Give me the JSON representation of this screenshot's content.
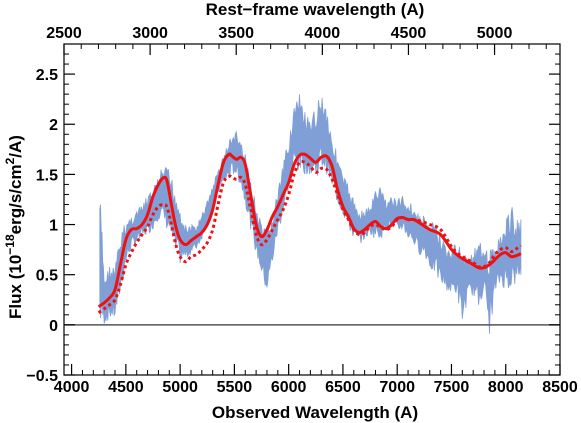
{
  "chart_data": {
    "type": "line",
    "title": "",
    "xlabel": "Observed Wavelength (A)",
    "ylabel_main": "Flux (10",
    "ylabel_exp": "−18",
    "ylabel_mid": "erg/s/cm",
    "ylabel_sq": "2",
    "ylabel_end": "/A)",
    "top_xlabel": "Rest−frame wavelength (A)",
    "xlim": [
      3930,
      8500
    ],
    "ylim": [
      -0.5,
      2.8
    ],
    "top_xlim": [
      2500,
      5380
    ],
    "x_ticks": [
      4000,
      4500,
      5000,
      5500,
      6000,
      6500,
      7000,
      7500,
      8000,
      8500
    ],
    "x_tick_labels": [
      "4000",
      "4500",
      "5000",
      "5500",
      "6000",
      "6500",
      "7000",
      "7500",
      "8000",
      "8500"
    ],
    "y_ticks": [
      -0.5,
      0,
      0.5,
      1,
      1.5,
      2,
      2.5
    ],
    "y_tick_labels": [
      "−0.5",
      "0",
      "0.5",
      "1",
      "1.5",
      "2",
      "2.5"
    ],
    "top_ticks": [
      2500,
      3000,
      3500,
      4000,
      4500,
      5000
    ],
    "top_tick_labels": [
      "2500",
      "3000",
      "3500",
      "4000",
      "4500",
      "5000"
    ],
    "zero_line": 0,
    "colors": {
      "spectrum": "#7f9fd6",
      "model": "#ee1111",
      "zero_line": "#555555"
    },
    "series": [
      {
        "style": "filled-noisy",
        "x": [
          4260,
          4300,
          4350,
          4400,
          4450,
          4500,
          4550,
          4600,
          4650,
          4700,
          4750,
          4800,
          4850,
          4900,
          4950,
          5000,
          5050,
          5100,
          5150,
          5200,
          5250,
          5300,
          5350,
          5400,
          5450,
          5500,
          5550,
          5600,
          5650,
          5700,
          5750,
          5800,
          5850,
          5900,
          5950,
          6000,
          6050,
          6100,
          6150,
          6200,
          6250,
          6300,
          6350,
          6400,
          6450,
          6500,
          6550,
          6600,
          6650,
          6700,
          6750,
          6800,
          6850,
          6900,
          6950,
          7000,
          7050,
          7100,
          7150,
          7200,
          7250,
          7300,
          7350,
          7400,
          7450,
          7500,
          7550,
          7600,
          7650,
          7700,
          7750,
          7800,
          7850,
          7900,
          7950,
          8000,
          8050,
          8100,
          8140
        ],
        "y_low": [
          -0.05,
          0.0,
          0.05,
          0.05,
          0.3,
          0.6,
          0.75,
          0.8,
          0.85,
          0.9,
          0.95,
          1.05,
          1.0,
          0.9,
          0.7,
          0.6,
          0.65,
          0.7,
          0.75,
          0.85,
          1.0,
          1.15,
          1.3,
          1.4,
          1.45,
          1.5,
          1.4,
          1.2,
          0.95,
          0.7,
          0.5,
          0.3,
          0.6,
          0.9,
          1.1,
          1.35,
          1.55,
          1.5,
          1.5,
          1.5,
          1.45,
          1.55,
          1.5,
          1.35,
          1.2,
          1.1,
          0.95,
          0.85,
          0.8,
          0.85,
          0.9,
          0.85,
          0.85,
          0.95,
          0.95,
          0.9,
          0.95,
          0.85,
          0.8,
          0.7,
          0.7,
          0.55,
          0.5,
          0.4,
          0.35,
          0.3,
          0.3,
          0.0,
          0.25,
          0.3,
          0.15,
          0.35,
          -0.1,
          0.3,
          0.4,
          0.35,
          0.35,
          0.4,
          0.5
        ],
        "y_high": [
          1.4,
          0.5,
          0.6,
          0.6,
          0.9,
          1.05,
          1.1,
          1.15,
          1.2,
          1.3,
          1.35,
          1.5,
          1.6,
          1.55,
          1.4,
          1.2,
          1.0,
          1.0,
          1.0,
          1.1,
          1.25,
          1.4,
          1.55,
          1.7,
          1.85,
          1.95,
          1.9,
          1.7,
          1.45,
          1.2,
          1.0,
          0.95,
          1.1,
          1.35,
          1.6,
          1.9,
          2.2,
          2.3,
          2.15,
          2.0,
          2.2,
          2.35,
          2.2,
          1.9,
          1.7,
          1.5,
          1.4,
          1.25,
          1.15,
          1.15,
          1.2,
          1.35,
          1.4,
          1.25,
          1.3,
          1.25,
          1.3,
          1.25,
          1.2,
          1.1,
          1.1,
          1.0,
          1.05,
          0.9,
          0.8,
          0.75,
          0.85,
          0.75,
          0.7,
          0.75,
          0.8,
          0.85,
          0.75,
          0.8,
          0.9,
          1.05,
          1.2,
          1.05,
          1.05
        ]
      },
      {
        "style": "solid",
        "x": [
          4250,
          4300,
          4350,
          4400,
          4450,
          4500,
          4550,
          4600,
          4650,
          4700,
          4750,
          4800,
          4850,
          4880,
          4920,
          4960,
          5000,
          5050,
          5100,
          5150,
          5200,
          5250,
          5300,
          5350,
          5400,
          5450,
          5480,
          5520,
          5560,
          5600,
          5650,
          5700,
          5750,
          5800,
          5850,
          5900,
          5950,
          6000,
          6050,
          6100,
          6150,
          6200,
          6250,
          6300,
          6350,
          6400,
          6450,
          6500,
          6550,
          6600,
          6650,
          6700,
          6750,
          6800,
          6850,
          6900,
          6950,
          7000,
          7050,
          7100,
          7150,
          7200,
          7300,
          7400,
          7500,
          7550,
          7600,
          7700,
          7750,
          7800,
          7850,
          7900,
          7950,
          8000,
          8050,
          8100,
          8140
        ],
        "y": [
          0.18,
          0.22,
          0.27,
          0.35,
          0.6,
          0.85,
          0.95,
          0.96,
          1.0,
          1.1,
          1.28,
          1.4,
          1.47,
          1.43,
          1.2,
          0.98,
          0.85,
          0.8,
          0.84,
          0.88,
          0.92,
          1.0,
          1.15,
          1.4,
          1.62,
          1.7,
          1.68,
          1.65,
          1.67,
          1.6,
          1.3,
          1.0,
          0.88,
          0.95,
          1.08,
          1.18,
          1.3,
          1.42,
          1.6,
          1.69,
          1.7,
          1.66,
          1.62,
          1.67,
          1.68,
          1.58,
          1.35,
          1.18,
          1.08,
          0.96,
          0.92,
          0.95,
          1.0,
          1.03,
          0.98,
          0.96,
          1.0,
          1.06,
          1.07,
          1.05,
          1.05,
          1.02,
          0.95,
          0.9,
          0.75,
          0.7,
          0.66,
          0.6,
          0.57,
          0.57,
          0.6,
          0.65,
          0.7,
          0.72,
          0.68,
          0.69,
          0.71
        ]
      },
      {
        "style": "dotted",
        "x": [
          4250,
          4300,
          4350,
          4400,
          4450,
          4500,
          4550,
          4600,
          4650,
          4700,
          4750,
          4800,
          4850,
          4880,
          4920,
          4960,
          5000,
          5050,
          5100,
          5150,
          5200,
          5250,
          5300,
          5350,
          5400,
          5450,
          5480,
          5520,
          5560,
          5600,
          5650,
          5700,
          5750,
          5800,
          5850,
          5900,
          5950,
          6000,
          6050,
          6100,
          6150,
          6200,
          6250,
          6300,
          6350,
          6400,
          6450,
          6500,
          6550,
          6600,
          6650,
          6700,
          6750,
          6800,
          6850,
          6900,
          6950,
          7000,
          7050,
          7100,
          7150,
          7200,
          7300,
          7400,
          7500,
          7550,
          7600,
          7700,
          7750,
          7800,
          7850,
          7900,
          7950,
          8000,
          8050,
          8100,
          8140
        ],
        "y": [
          0.12,
          0.16,
          0.2,
          0.25,
          0.4,
          0.6,
          0.72,
          0.82,
          0.9,
          0.98,
          1.1,
          1.18,
          1.2,
          1.17,
          1.0,
          0.8,
          0.68,
          0.63,
          0.68,
          0.7,
          0.75,
          0.82,
          0.95,
          1.2,
          1.42,
          1.48,
          1.47,
          1.45,
          1.47,
          1.4,
          1.15,
          0.9,
          0.8,
          0.85,
          0.95,
          1.05,
          1.15,
          1.3,
          1.5,
          1.62,
          1.62,
          1.58,
          1.52,
          1.56,
          1.55,
          1.45,
          1.3,
          1.15,
          1.05,
          0.95,
          0.9,
          0.92,
          0.98,
          1.0,
          0.97,
          0.95,
          0.98,
          1.05,
          1.07,
          1.05,
          1.05,
          1.04,
          1.0,
          0.95,
          0.78,
          0.72,
          0.68,
          0.62,
          0.58,
          0.58,
          0.62,
          0.7,
          0.75,
          0.77,
          0.73,
          0.76,
          0.79
        ]
      }
    ]
  }
}
